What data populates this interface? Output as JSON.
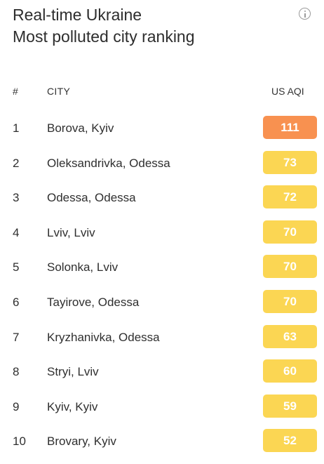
{
  "title": {
    "line1": "Real-time Ukraine",
    "line2": "Most polluted city ranking"
  },
  "icons": {
    "info": "info-icon"
  },
  "table": {
    "headers": {
      "rank": "#",
      "city": "CITY",
      "aqi": "US AQI"
    },
    "rows": [
      {
        "rank": "1",
        "city": "Borova, Kyiv",
        "aqi": "111",
        "level": "orange"
      },
      {
        "rank": "2",
        "city": "Oleksandrivka, Odessa",
        "aqi": "73",
        "level": "yellow"
      },
      {
        "rank": "3",
        "city": "Odessa, Odessa",
        "aqi": "72",
        "level": "yellow"
      },
      {
        "rank": "4",
        "city": "Lviv, Lviv",
        "aqi": "70",
        "level": "yellow"
      },
      {
        "rank": "5",
        "city": "Solonka, Lviv",
        "aqi": "70",
        "level": "yellow"
      },
      {
        "rank": "6",
        "city": "Tayirove, Odessa",
        "aqi": "70",
        "level": "yellow"
      },
      {
        "rank": "7",
        "city": "Kryzhanivka, Odessa",
        "aqi": "63",
        "level": "yellow"
      },
      {
        "rank": "8",
        "city": "Stryi, Lviv",
        "aqi": "60",
        "level": "yellow"
      },
      {
        "rank": "9",
        "city": "Kyiv, Kyiv",
        "aqi": "59",
        "level": "yellow"
      },
      {
        "rank": "10",
        "city": "Brovary, Kyiv",
        "aqi": "52",
        "level": "yellow"
      }
    ]
  },
  "colors": {
    "orange": "#f89150",
    "yellow": "#fbd653"
  }
}
